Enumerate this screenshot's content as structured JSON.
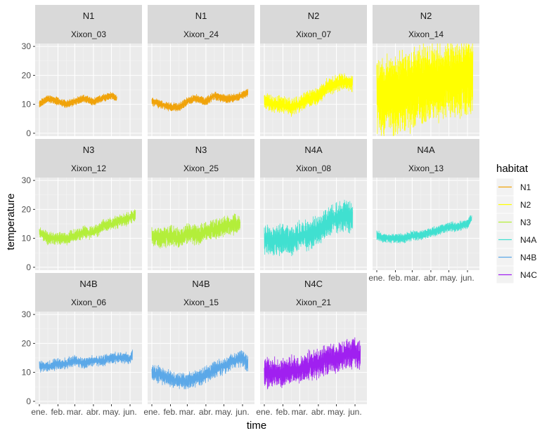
{
  "chart_data": {
    "type": "line",
    "xlabel": "time",
    "ylabel": "temperature",
    "x_tick_labels": [
      "ene.",
      "feb.",
      "mar.",
      "abr.",
      "may.",
      "jun."
    ],
    "y_ticks": [
      0,
      10,
      20,
      30
    ],
    "ylim": [
      -1,
      31
    ],
    "legend": {
      "title": "habitat",
      "position": "right",
      "entries": [
        {
          "name": "N1",
          "color": "#f0a30a"
        },
        {
          "name": "N2",
          "color": "#ffff00"
        },
        {
          "name": "N3",
          "color": "#b3ee3a"
        },
        {
          "name": "N4A",
          "color": "#40e0d0"
        },
        {
          "name": "N4B",
          "color": "#5ba8e8"
        },
        {
          "name": "N4C",
          "color": "#a020f0"
        }
      ]
    },
    "panels": [
      {
        "habitat": "N1",
        "site": "Xixon_03",
        "color": "#f0a30a",
        "x": [
          "2021-01-01",
          "2021-01-15",
          "2021-02-01",
          "2021-02-15",
          "2021-03-01",
          "2021-03-15",
          "2021-04-01",
          "2021-04-15",
          "2021-05-01",
          "2021-05-10"
        ],
        "y": [
          10,
          12,
          11,
          10,
          11,
          12,
          11,
          12,
          13,
          12
        ],
        "spread": 2.2,
        "noise": 0.4
      },
      {
        "habitat": "N1",
        "site": "Xixon_24",
        "color": "#f0a30a",
        "x": [
          "2021-01-01",
          "2021-01-15",
          "2021-02-01",
          "2021-02-15",
          "2021-03-01",
          "2021-03-15",
          "2021-04-01",
          "2021-04-15",
          "2021-05-01",
          "2021-05-15",
          "2021-06-01",
          "2021-06-10"
        ],
        "y": [
          11,
          10,
          9,
          9,
          11,
          12,
          11,
          13,
          12,
          12,
          13,
          14
        ],
        "spread": 2.5,
        "noise": 0.4
      },
      {
        "habitat": "N2",
        "site": "Xixon_07",
        "color": "#ffff00",
        "x": [
          "2021-01-01",
          "2021-01-15",
          "2021-02-01",
          "2021-02-15",
          "2021-03-01",
          "2021-03-15",
          "2021-04-01",
          "2021-04-15",
          "2021-05-01",
          "2021-05-15",
          "2021-05-28"
        ],
        "y": [
          11,
          10,
          10,
          9,
          10,
          12,
          13,
          16,
          17,
          18,
          17
        ],
        "spread": 4.5,
        "noise": 0.5
      },
      {
        "habitat": "N2",
        "site": "Xixon_14",
        "color": "#ffff00",
        "x": [
          "2021-01-01",
          "2021-01-15",
          "2021-02-01",
          "2021-02-15",
          "2021-03-01",
          "2021-03-15",
          "2021-04-01",
          "2021-04-15",
          "2021-05-01",
          "2021-05-15",
          "2021-06-01",
          "2021-06-10"
        ],
        "y": [
          14,
          13,
          13,
          15,
          15,
          16,
          17,
          18,
          19,
          19,
          20,
          19
        ],
        "spread": 24,
        "noise": 0.3
      },
      {
        "habitat": "N3",
        "site": "Xixon_12",
        "color": "#b3ee3a",
        "x": [
          "2021-01-01",
          "2021-01-15",
          "2021-02-01",
          "2021-02-15",
          "2021-03-01",
          "2021-03-15",
          "2021-04-01",
          "2021-04-15",
          "2021-05-01",
          "2021-05-15",
          "2021-06-01",
          "2021-06-10"
        ],
        "y": [
          12,
          10,
          10,
          10,
          11,
          12,
          12,
          14,
          15,
          16,
          17,
          18
        ],
        "spread": 3.5,
        "noise": 0.5
      },
      {
        "habitat": "N3",
        "site": "Xixon_25",
        "color": "#b3ee3a",
        "x": [
          "2021-01-01",
          "2021-01-15",
          "2021-02-01",
          "2021-02-15",
          "2021-03-01",
          "2021-03-15",
          "2021-04-01",
          "2021-04-15",
          "2021-05-01",
          "2021-05-15",
          "2021-05-28"
        ],
        "y": [
          11,
          10,
          11,
          10,
          12,
          11,
          12,
          13,
          14,
          15,
          15
        ],
        "spread": 5.5,
        "noise": 0.5
      },
      {
        "habitat": "N4A",
        "site": "Xixon_08",
        "color": "#40e0d0",
        "x": [
          "2021-01-01",
          "2021-01-15",
          "2021-02-01",
          "2021-02-15",
          "2021-03-01",
          "2021-03-15",
          "2021-04-01",
          "2021-04-15",
          "2021-05-01",
          "2021-05-15",
          "2021-05-28"
        ],
        "y": [
          10,
          9,
          10,
          9,
          11,
          11,
          13,
          15,
          17,
          18,
          17
        ],
        "spread": 8,
        "noise": 0.5
      },
      {
        "habitat": "N4A",
        "site": "Xixon_13",
        "color": "#40e0d0",
        "x": [
          "2021-01-01",
          "2021-01-15",
          "2021-02-01",
          "2021-02-15",
          "2021-03-01",
          "2021-03-15",
          "2021-04-01",
          "2021-04-15",
          "2021-05-01",
          "2021-05-15",
          "2021-06-01",
          "2021-06-08"
        ],
        "y": [
          11,
          10,
          10,
          10,
          11,
          11,
          12,
          13,
          14,
          14,
          15,
          17
        ],
        "spread": 2.8,
        "noise": 0.4
      },
      {
        "habitat": "N4B",
        "site": "Xixon_06",
        "color": "#5ba8e8",
        "x": [
          "2021-01-01",
          "2021-01-15",
          "2021-02-01",
          "2021-02-15",
          "2021-03-01",
          "2021-03-15",
          "2021-04-01",
          "2021-04-15",
          "2021-05-01",
          "2021-05-15",
          "2021-06-01",
          "2021-06-05"
        ],
        "y": [
          12,
          12,
          13,
          13,
          14,
          13,
          14,
          14,
          15,
          15,
          15,
          16
        ],
        "spread": 3,
        "noise": 0.5
      },
      {
        "habitat": "N4B",
        "site": "Xixon_15",
        "color": "#5ba8e8",
        "x": [
          "2021-01-01",
          "2021-01-15",
          "2021-02-01",
          "2021-02-15",
          "2021-03-01",
          "2021-03-15",
          "2021-04-01",
          "2021-04-15",
          "2021-05-01",
          "2021-05-15",
          "2021-06-01",
          "2021-06-10"
        ],
        "y": [
          10,
          9,
          8,
          7,
          7,
          8,
          9,
          11,
          12,
          14,
          15,
          13
        ],
        "spread": 4.5,
        "noise": 0.5
      },
      {
        "habitat": "N4C",
        "site": "Xixon_21",
        "color": "#a020f0",
        "x": [
          "2021-01-01",
          "2021-01-15",
          "2021-02-01",
          "2021-02-15",
          "2021-03-01",
          "2021-03-15",
          "2021-04-01",
          "2021-04-15",
          "2021-05-01",
          "2021-05-15",
          "2021-06-01",
          "2021-06-10"
        ],
        "y": [
          10,
          10,
          10,
          11,
          11,
          12,
          13,
          14,
          15,
          16,
          17,
          16
        ],
        "spread": 8,
        "noise": 0.5
      }
    ]
  }
}
